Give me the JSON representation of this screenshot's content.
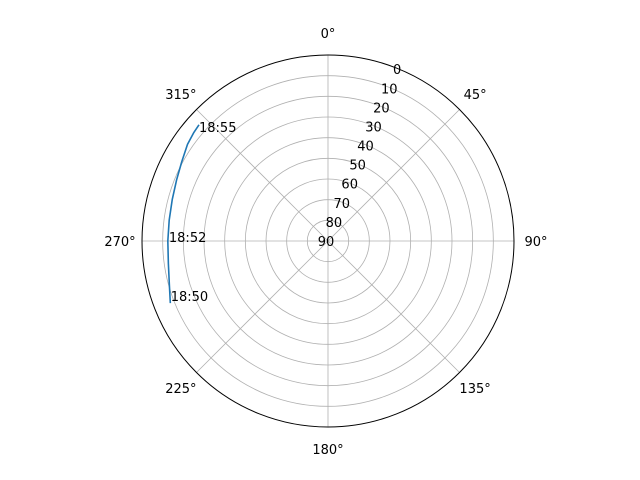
{
  "chart_data": {
    "type": "polar-line",
    "theta_zero_location": "N",
    "theta_direction": "clockwise",
    "r_axis": "elevation (inverted: 0 at rim, 90 at center)",
    "rlim": [
      90,
      0
    ],
    "grid": true,
    "theta_ticks": [
      "0°",
      "45°",
      "90°",
      "135°",
      "180°",
      "225°",
      "270°",
      "315°"
    ],
    "r_ticks": [
      "0",
      "10",
      "20",
      "30",
      "40",
      "50",
      "60",
      "70",
      "80",
      "90"
    ],
    "series": [
      {
        "color": "#1f77b4",
        "points": [
          {
            "az": 248.5,
            "el": 8.0
          },
          {
            "az": 255.0,
            "el": 10.5
          },
          {
            "az": 262.0,
            "el": 12.0
          },
          {
            "az": 270.0,
            "el": 12.5
          },
          {
            "az": 277.5,
            "el": 12.5
          },
          {
            "az": 285.0,
            "el": 12.0
          },
          {
            "az": 292.0,
            "el": 11.0
          },
          {
            "az": 298.5,
            "el": 9.5
          },
          {
            "az": 304.5,
            "el": 7.5
          },
          {
            "az": 309.0,
            "el": 6.5
          },
          {
            "az": 312.0,
            "el": 6.0
          }
        ]
      }
    ],
    "annotations": [
      {
        "text": "18:50",
        "az": 251.0,
        "el": 8.5
      },
      {
        "text": "18:52",
        "az": 271.5,
        "el": 12.0
      },
      {
        "text": "18:55",
        "az": 311.0,
        "el": 6.0
      }
    ]
  }
}
